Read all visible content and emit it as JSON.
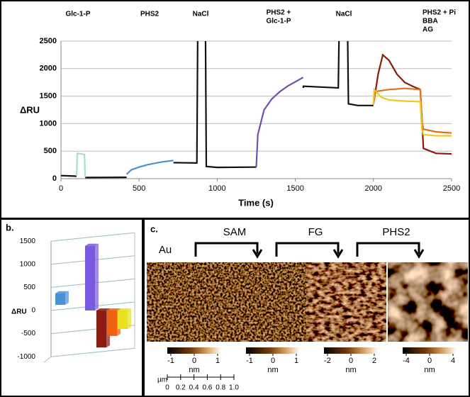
{
  "chart_data": [
    {
      "type": "line",
      "annotations": [
        [
          "Glc-1-P"
        ],
        [
          "PHS2"
        ],
        [
          "NaCl"
        ],
        [
          "PHS2 +",
          "Glc-1-P"
        ],
        [
          "NaCl"
        ],
        [
          "PHS2 + Pi",
          "BBA",
          "AG"
        ]
      ],
      "xlabel": "Time (s)",
      "ylabel": "ΔRU",
      "xlim": [
        0,
        2500
      ],
      "xticks": [
        0,
        500,
        1000,
        1500,
        2000,
        2500
      ],
      "ylim": [
        0,
        2500
      ],
      "yticks": [
        0,
        500,
        1000,
        1500,
        2000,
        2500
      ],
      "grid": true,
      "series": [
        {
          "color": "#111111",
          "x": [
            0,
            100,
            120,
            155,
            420,
            430,
            720,
            750,
            870,
            875,
            925,
            930,
            1000,
            1250,
            1260,
            1550,
            1552,
            1700,
            1775,
            1780,
            1835,
            1840,
            1900,
            2000
          ],
          "values": [
            55,
            45,
            null,
            20,
            25,
            null,
            290,
            290,
            285,
            2600,
            2600,
            220,
            205,
            210,
            null,
            1650,
            1680,
            1660,
            1650,
            2600,
            2600,
            1360,
            1330,
            1330
          ]
        },
        {
          "color": "#a8e0c8",
          "x": [
            100,
            105,
            150,
            155
          ],
          "values": [
            50,
            460,
            440,
            30
          ]
        },
        {
          "color": "#4a90d0",
          "x": [
            420,
            450,
            500,
            550,
            600,
            650,
            720
          ],
          "values": [
            80,
            160,
            210,
            250,
            280,
            305,
            330
          ]
        },
        {
          "color": "#7050b0",
          "x": [
            1250,
            1260,
            1300,
            1350,
            1400,
            1450,
            1500,
            1550
          ],
          "values": [
            210,
            800,
            1250,
            1450,
            1580,
            1680,
            1760,
            1840
          ]
        },
        {
          "color": "#8b1a0a",
          "x": [
            2000,
            2030,
            2060,
            2100,
            2150,
            2200,
            2250,
            2300,
            2310,
            2320,
            2400,
            2500
          ],
          "values": [
            1350,
            1900,
            2250,
            2150,
            1900,
            1750,
            1680,
            1620,
            1100,
            550,
            460,
            450
          ]
        },
        {
          "color": "#e07020",
          "x": [
            2000,
            2010,
            2050,
            2100,
            2200,
            2300,
            2310,
            2320,
            2400,
            2500
          ],
          "values": [
            1350,
            1580,
            1600,
            1620,
            1640,
            1620,
            1050,
            900,
            850,
            830
          ]
        },
        {
          "color": "#f0c820",
          "x": [
            2000,
            2005,
            2050,
            2100,
            2200,
            2300,
            2310,
            2320,
            2400,
            2500
          ],
          "values": [
            1350,
            1620,
            1480,
            1430,
            1410,
            1400,
            900,
            800,
            780,
            780
          ]
        }
      ]
    },
    {
      "type": "bar3d",
      "panel_label": "b.",
      "ylabel": "ΔRU",
      "ylim": [
        -1000,
        1500
      ],
      "yticks": [
        -1000,
        -500,
        0,
        500,
        1000,
        1500
      ],
      "values": [
        250,
        1400,
        -800,
        -550,
        -400
      ],
      "colors": [
        "#4a90d8",
        "#7a5ae0",
        "#8b1a10",
        "#f06010",
        "#e8e020"
      ]
    }
  ],
  "panel_c": {
    "panel_label": "c.",
    "start": "Au",
    "steps": [
      "SAM",
      "FG",
      "PHS2"
    ],
    "colorbars": [
      {
        "ticks": [
          -1,
          0,
          1
        ],
        "unit": "nm"
      },
      {
        "ticks": [
          -1,
          0,
          1
        ],
        "unit": "nm"
      },
      {
        "ticks": [
          -2,
          0,
          2
        ],
        "unit": "nm"
      },
      {
        "ticks": [
          -4,
          0,
          4
        ],
        "unit": "nm"
      }
    ],
    "scalebar": {
      "unit": "µm",
      "ticks": [
        0,
        0.2,
        0.4,
        0.6,
        0.8,
        {
          "value": 1,
          "label": "1.0"
        }
      ]
    }
  }
}
